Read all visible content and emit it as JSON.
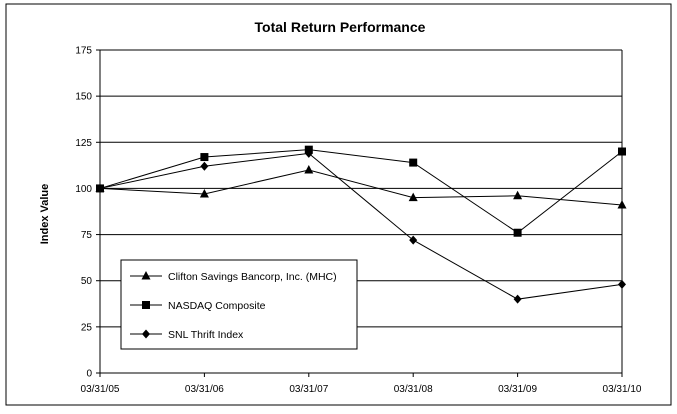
{
  "chart_data": {
    "type": "line",
    "title": "Total Return Performance",
    "xlabel": "",
    "ylabel": "Index Value",
    "ylim": [
      0,
      175
    ],
    "yticks": [
      0,
      25,
      50,
      75,
      100,
      125,
      150,
      175
    ],
    "categories": [
      "03/31/05",
      "03/31/06",
      "03/31/07",
      "03/31/08",
      "03/31/09",
      "03/31/10"
    ],
    "grid": "horizontal",
    "legend_position": "bottom-left",
    "series": [
      {
        "name": "Clifton Savings Bancorp, Inc. (MHC)",
        "marker": "triangle",
        "values": [
          100,
          97,
          110,
          95,
          96,
          91
        ]
      },
      {
        "name": "NASDAQ Composite",
        "marker": "square",
        "values": [
          100,
          117,
          121,
          114,
          76,
          120
        ]
      },
      {
        "name": "SNL Thrift Index",
        "marker": "diamond",
        "values": [
          100,
          112,
          119,
          72,
          40,
          48
        ]
      }
    ]
  }
}
